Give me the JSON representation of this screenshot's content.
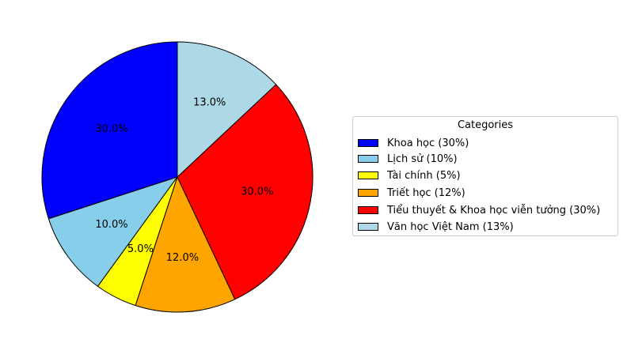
{
  "chart_data": {
    "type": "pie",
    "categories": [
      "Khoa học",
      "Lịch sử",
      "Tài chính",
      "Triết học",
      "Tiểu thuyết & Khoa học viễn tưởng",
      "Văn học Việt Nam"
    ],
    "values": [
      30,
      10,
      5,
      12,
      30,
      13
    ],
    "percent_labels": [
      "30.0%",
      "10.0%",
      "5.0%",
      "12.0%",
      "30.0%",
      "13.0%"
    ],
    "colors": [
      "#0000ff",
      "#87ceeb",
      "#ffff00",
      "#ffa500",
      "#ff0000",
      "#add8e6"
    ],
    "start_angle_deg": 90,
    "direction": "counterclockwise",
    "legend": {
      "title": "Categories",
      "placement": "right",
      "entries": [
        "Khoa học (30%)",
        "Lịch sử (10%)",
        "Tài chính (5%)",
        "Triết học (12%)",
        "Tiểu thuyết & Khoa học viễn tưởng (30%)",
        "Văn học Việt Nam (13%)"
      ]
    }
  }
}
